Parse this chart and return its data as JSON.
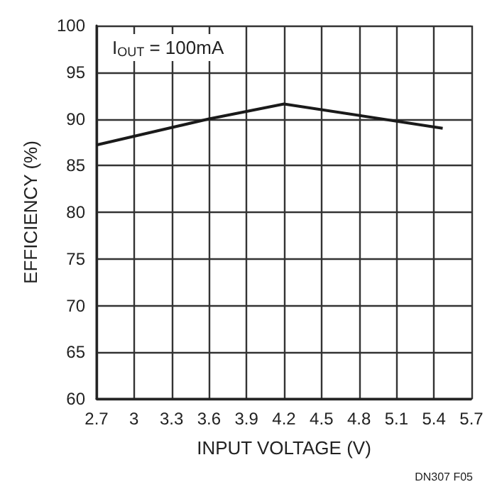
{
  "chart_data": {
    "type": "line",
    "xlabel": "INPUT VOLTAGE (V)",
    "ylabel": "EFFICIENCY (%)",
    "annotations": [
      "I$_{OUT}$ = 100mA",
      "DN307 F05"
    ],
    "series": [
      {
        "color": "#1a1a1a",
        "x": [
          2.7,
          3.6,
          4.2,
          5.47
        ],
        "values": [
          87.2,
          90.0,
          91.6,
          89.0
        ]
      }
    ],
    "xlim": [
      2.7,
      5.7
    ],
    "xticks": [
      2.7,
      3,
      3.3,
      3.6,
      3.9,
      4.2,
      4.5,
      4.8,
      5.1,
      5.4,
      5.7
    ],
    "ylim": [
      60,
      100
    ],
    "yticks": [
      60,
      65,
      70,
      75,
      80,
      85,
      90,
      95,
      100
    ],
    "grid": true,
    "marker": "none",
    "line_style": "solid"
  }
}
